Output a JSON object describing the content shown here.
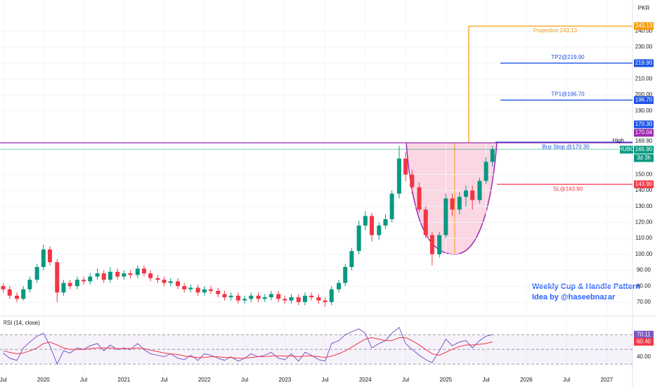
{
  "chart_data": {
    "type": "candlestick",
    "symbol": "HUBC",
    "currency": "PKR",
    "countdown": "3d 3h",
    "up_color": "#089981",
    "down_color": "#f23645",
    "x": [
      2019.5,
      2019.58,
      2019.67,
      2019.75,
      2019.83,
      2019.92,
      2020.0,
      2020.08,
      2020.17,
      2020.25,
      2020.33,
      2020.42,
      2020.5,
      2020.58,
      2020.67,
      2020.75,
      2020.83,
      2020.92,
      2021.0,
      2021.08,
      2021.17,
      2021.25,
      2021.33,
      2021.42,
      2021.5,
      2021.58,
      2021.67,
      2021.75,
      2021.83,
      2021.92,
      2022.0,
      2022.08,
      2022.17,
      2022.25,
      2022.33,
      2022.42,
      2022.5,
      2022.58,
      2022.67,
      2022.75,
      2022.83,
      2022.92,
      2023.0,
      2023.08,
      2023.17,
      2023.25,
      2023.33,
      2023.42,
      2023.5,
      2023.58,
      2023.67,
      2023.75,
      2023.83,
      2023.92,
      2024.0,
      2024.08,
      2024.17,
      2024.25,
      2024.33,
      2024.42,
      2024.5,
      2024.58,
      2024.67,
      2024.75,
      2024.83,
      2024.92,
      2025.0,
      2025.08,
      2025.17,
      2025.25,
      2025.33,
      2025.42,
      2025.5,
      2025.58
    ],
    "open": [
      80,
      78,
      74,
      72,
      78,
      84,
      92,
      103,
      95,
      76,
      82,
      80,
      84,
      83,
      86,
      88,
      84,
      89,
      86,
      88,
      87,
      91,
      88,
      85,
      84,
      82,
      83,
      80,
      78,
      79,
      76,
      78,
      77,
      75,
      73,
      74,
      71,
      72,
      74,
      72,
      73,
      75,
      72,
      71,
      73,
      70,
      74,
      73,
      71,
      70,
      78,
      82,
      92,
      102,
      118,
      124,
      112,
      118,
      122,
      138,
      160,
      150,
      142,
      128,
      112,
      100,
      112,
      135,
      128,
      136,
      140,
      134,
      146,
      158
    ],
    "high": [
      82,
      80,
      76,
      80,
      86,
      94,
      106,
      105,
      97,
      84,
      84,
      86,
      86,
      88,
      91,
      90,
      92,
      91,
      90,
      90,
      93,
      93,
      90,
      87,
      86,
      85,
      85,
      82,
      81,
      81,
      80,
      80,
      79,
      77,
      76,
      76,
      74,
      76,
      76,
      75,
      77,
      77,
      74,
      75,
      75,
      76,
      76,
      75,
      73,
      80,
      84,
      94,
      104,
      121,
      127,
      126,
      120,
      125,
      140,
      168,
      164,
      153,
      145,
      130,
      114,
      114,
      138,
      138,
      139,
      143,
      143,
      148,
      161,
      168
    ],
    "low": [
      76,
      72,
      70,
      71,
      76,
      82,
      90,
      93,
      70,
      74,
      78,
      78,
      81,
      81,
      84,
      82,
      82,
      84,
      84,
      85,
      85,
      86,
      83,
      82,
      80,
      80,
      78,
      76,
      76,
      74,
      74,
      75,
      73,
      71,
      71,
      69,
      69,
      70,
      70,
      70,
      71,
      70,
      69,
      69,
      68,
      68,
      71,
      69,
      67,
      68,
      76,
      80,
      90,
      100,
      115,
      108,
      109,
      116,
      120,
      135,
      146,
      138,
      126,
      110,
      93,
      98,
      110,
      124,
      125,
      130,
      128,
      132,
      144,
      155
    ],
    "close": [
      78,
      74,
      72,
      78,
      84,
      92,
      103,
      95,
      76,
      82,
      80,
      84,
      83,
      86,
      88,
      84,
      89,
      86,
      88,
      87,
      91,
      88,
      85,
      84,
      82,
      83,
      80,
      78,
      79,
      76,
      78,
      77,
      75,
      73,
      74,
      71,
      72,
      74,
      72,
      73,
      75,
      72,
      71,
      73,
      70,
      74,
      73,
      71,
      70,
      78,
      82,
      92,
      102,
      118,
      124,
      112,
      118,
      122,
      138,
      160,
      150,
      142,
      128,
      112,
      100,
      112,
      135,
      128,
      136,
      140,
      134,
      146,
      158,
      165.9
    ],
    "xlim": [
      2019.46,
      2027.32
    ],
    "xticks": [
      {
        "value": 2019.5,
        "label": "Jul"
      },
      {
        "value": 2020,
        "label": "2020"
      },
      {
        "value": 2020.5,
        "label": "Jul"
      },
      {
        "value": 2021,
        "label": "2021"
      },
      {
        "value": 2021.5,
        "label": "Jul"
      },
      {
        "value": 2022,
        "label": "2022"
      },
      {
        "value": 2022.5,
        "label": "Jul"
      },
      {
        "value": 2023,
        "label": "2023"
      },
      {
        "value": 2023.5,
        "label": "Jul"
      },
      {
        "value": 2024,
        "label": "2024"
      },
      {
        "value": 2024.5,
        "label": "Jul"
      },
      {
        "value": 2025,
        "label": "2025"
      },
      {
        "value": 2025.5,
        "label": "Jul"
      },
      {
        "value": 2026,
        "label": "2026"
      },
      {
        "value": 2026.5,
        "label": "Jul"
      },
      {
        "value": 2027,
        "label": "2027"
      }
    ],
    "ylim": [
      62,
      259.5
    ],
    "yticks": [
      {
        "value": 70,
        "label": "70.00"
      },
      {
        "value": 80,
        "label": "80.00"
      },
      {
        "value": 90,
        "label": "90.00"
      },
      {
        "value": 100,
        "label": "100.00"
      },
      {
        "value": 110,
        "label": "110.00"
      },
      {
        "value": 120,
        "label": "120.00"
      },
      {
        "value": 130,
        "label": "130.00"
      },
      {
        "value": 140,
        "label": "140.00"
      },
      {
        "value": 150,
        "label": "150.00"
      },
      {
        "value": 190,
        "label": "190.00"
      },
      {
        "value": 200,
        "label": "200.00"
      },
      {
        "value": 210,
        "label": "210.00"
      },
      {
        "value": 220,
        "label": "220.00"
      },
      {
        "value": 230,
        "label": "230.00"
      },
      {
        "value": 240,
        "label": "240.00"
      }
    ],
    "grid": true,
    "levels": [
      {
        "name": "Projection 243.13",
        "value": 243.13,
        "color": "#f59e0b"
      },
      {
        "name": "TP2@219.90",
        "value": 219.9,
        "color": "#1e53e5"
      },
      {
        "name": "TP1@196.70",
        "value": 196.7,
        "color": "#1e53e5"
      },
      {
        "name": "Buy Stop @170.30",
        "value": 170.3,
        "color": "#1e53e5"
      },
      {
        "name": "High",
        "value": 169.9,
        "color": "#9c27b0"
      },
      {
        "name": "SL@143.90",
        "value": 143.9,
        "color": "#f23645"
      }
    ],
    "badges": [
      {
        "value": 243.13,
        "label": "243.13",
        "color": "#f59e0b"
      },
      {
        "value": 219.9,
        "label": "219.90",
        "color": "#1e53e5"
      },
      {
        "value": 196.7,
        "label": "196.70",
        "color": "#1e53e5"
      },
      {
        "value": 170.3,
        "label": "170.30",
        "color": "#1e53e5"
      },
      {
        "value": 170.04,
        "label": "170.04",
        "color": "#9c27b0"
      },
      {
        "value": 169.9,
        "label": "169.90",
        "color": "#ffffff"
      },
      {
        "value": 165.9,
        "label": "165.90",
        "color": "#089981"
      },
      {
        "value": 143.9,
        "label": "143.90",
        "color": "#f23645"
      }
    ],
    "annotation": [
      "Weekly Cup & Handle Pattern",
      "Idea by @haseebnazar"
    ],
    "indicator": {
      "title": "RSI (14, close)",
      "ylim": [
        18.6,
        93.3
      ],
      "yticks": [
        {
          "value": 40,
          "label": "40.00"
        }
      ],
      "levels": [
        70,
        50,
        30
      ],
      "rsi": {
        "color": "#7e57c2",
        "label": "70.11",
        "values": [
          45,
          38,
          35,
          52,
          60,
          68,
          72,
          55,
          30,
          48,
          45,
          52,
          50,
          55,
          58,
          48,
          56,
          50,
          52,
          50,
          58,
          50,
          44,
          42,
          40,
          44,
          38,
          36,
          42,
          35,
          44,
          42,
          38,
          35,
          40,
          34,
          38,
          44,
          40,
          42,
          46,
          38,
          36,
          44,
          34,
          46,
          42,
          36,
          34,
          58,
          62,
          70,
          74,
          78,
          72,
          52,
          58,
          62,
          72,
          80,
          58,
          50,
          42,
          36,
          32,
          48,
          64,
          55,
          60,
          62,
          52,
          62,
          68,
          70.11
        ]
      },
      "ma": {
        "color": "#f23645",
        "label": "60.40",
        "values": [
          48,
          46,
          44,
          45,
          48,
          52,
          58,
          60,
          56,
          52,
          50,
          50,
          50,
          51,
          52,
          52,
          52,
          51,
          51,
          51,
          52,
          51,
          49,
          47,
          45,
          44,
          43,
          41,
          40,
          39,
          39,
          40,
          40,
          39,
          39,
          38,
          38,
          39,
          40,
          40,
          41,
          41,
          41,
          41,
          40,
          41,
          41,
          40,
          39,
          41,
          44,
          48,
          53,
          59,
          64,
          66,
          64,
          62,
          62,
          66,
          66,
          62,
          56,
          50,
          44,
          42,
          46,
          50,
          54,
          56,
          56,
          57,
          58,
          60.4
        ]
      }
    }
  }
}
